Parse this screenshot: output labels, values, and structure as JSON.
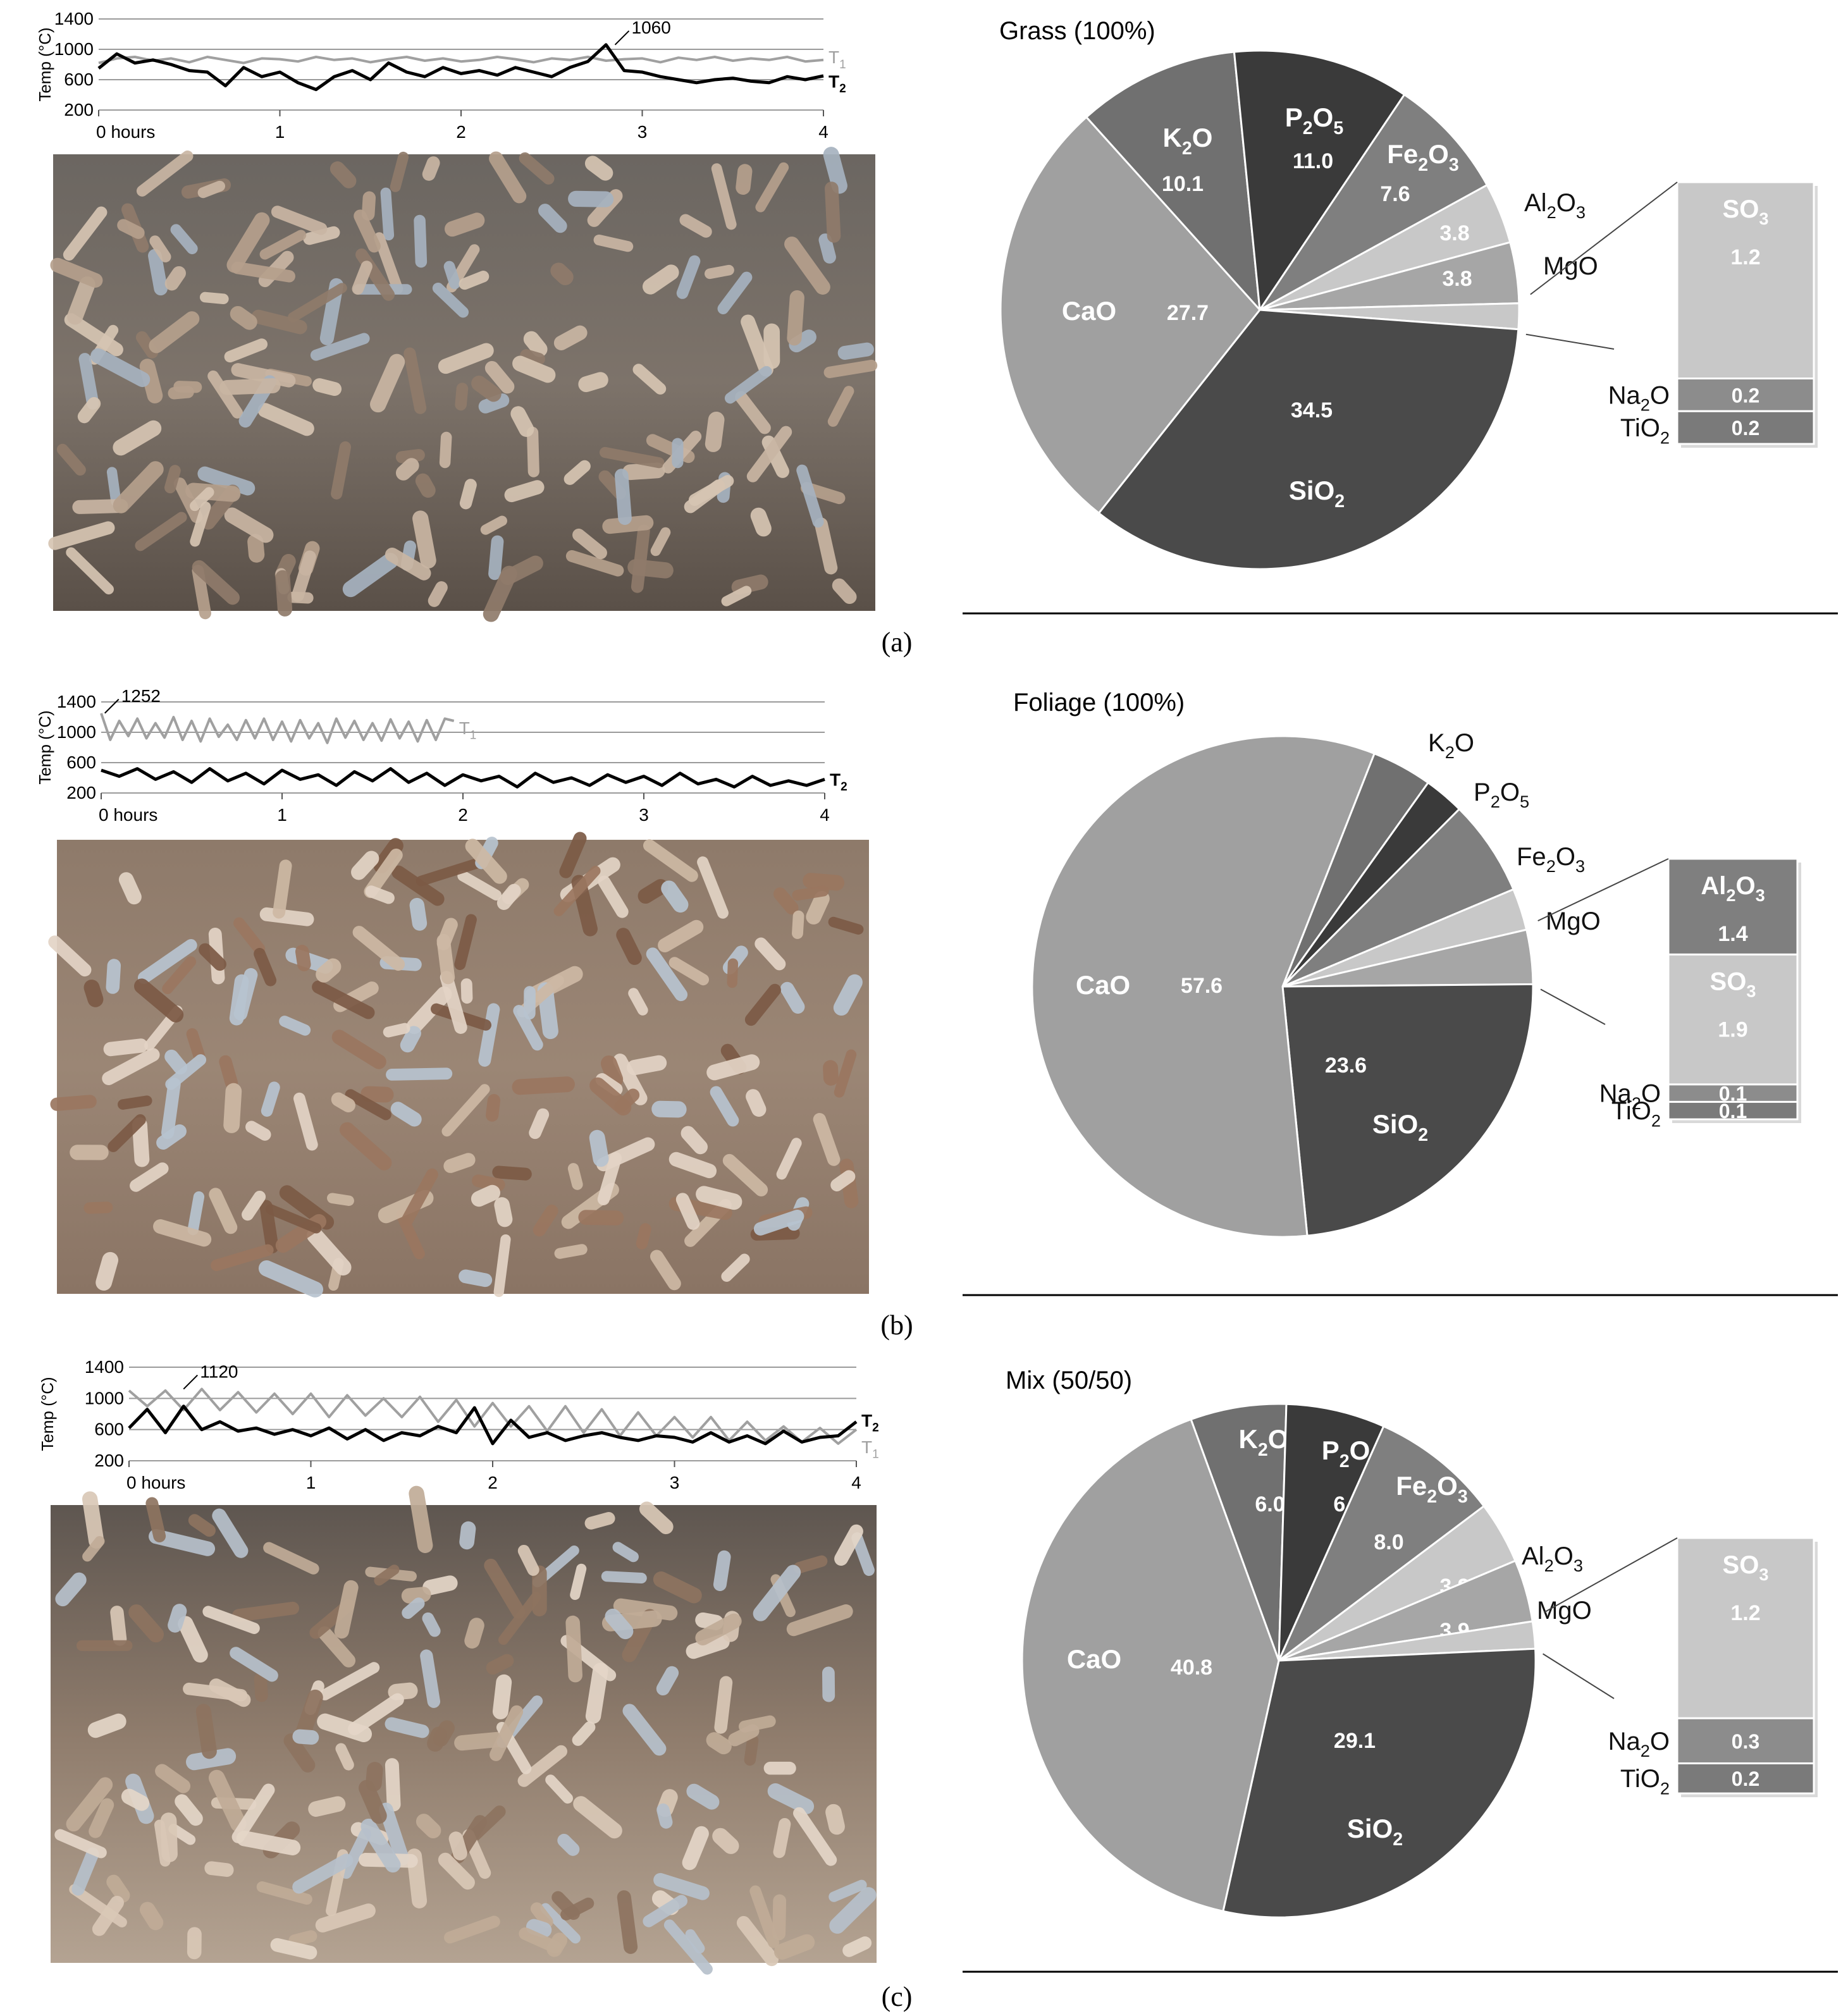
{
  "figure": {
    "panels": [
      {
        "label": "(a)",
        "letter": "a"
      },
      {
        "label": "(b)",
        "letter": "b"
      },
      {
        "label": "(c)",
        "letter": "c"
      }
    ]
  },
  "chart_data": [
    {
      "type": "line",
      "panel": "a",
      "ylabel": "Temp (°C)",
      "xlabel": "",
      "yticks": [
        "1400",
        "1000",
        "600",
        "200"
      ],
      "xticks": [
        "0 hours",
        "1",
        "2",
        "3",
        "4"
      ],
      "ylim": [
        200,
        1400
      ],
      "xlim": [
        0,
        4
      ],
      "grid": true,
      "annotation": {
        "text": "1060",
        "x": 2.85,
        "y": 1060
      },
      "series": [
        {
          "name": "T1",
          "label_main": "T",
          "label_sub": "1",
          "color": "#a0a0a0",
          "end_label_y": 900,
          "x": [
            0,
            0.1,
            0.2,
            0.3,
            0.4,
            0.5,
            0.6,
            0.7,
            0.8,
            0.9,
            1.0,
            1.1,
            1.2,
            1.3,
            1.4,
            1.5,
            1.6,
            1.7,
            1.8,
            1.9,
            2.0,
            2.1,
            2.2,
            2.3,
            2.4,
            2.5,
            2.6,
            2.7,
            2.8,
            2.9,
            3.0,
            3.1,
            3.2,
            3.3,
            3.4,
            3.5,
            3.6,
            3.7,
            3.8,
            3.9,
            4.0
          ],
          "y": [
            820,
            880,
            900,
            850,
            880,
            830,
            900,
            860,
            820,
            880,
            870,
            840,
            900,
            860,
            880,
            830,
            870,
            900,
            850,
            880,
            840,
            860,
            900,
            870,
            830,
            880,
            860,
            900,
            850,
            870,
            880,
            830,
            890,
            860,
            900,
            850,
            880,
            860,
            900,
            840,
            860
          ]
        },
        {
          "name": "T2",
          "label_main": "T",
          "label_sub": "2",
          "color": "#000000",
          "end_label_y": 580,
          "bold": true,
          "x": [
            0,
            0.1,
            0.2,
            0.3,
            0.4,
            0.5,
            0.6,
            0.7,
            0.8,
            0.9,
            1.0,
            1.1,
            1.2,
            1.3,
            1.4,
            1.5,
            1.6,
            1.7,
            1.8,
            1.9,
            2.0,
            2.1,
            2.2,
            2.3,
            2.4,
            2.5,
            2.6,
            2.7,
            2.8,
            2.9,
            3.0,
            3.1,
            3.2,
            3.3,
            3.4,
            3.5,
            3.6,
            3.7,
            3.8,
            3.9,
            4.0
          ],
          "y": [
            750,
            940,
            820,
            860,
            800,
            720,
            700,
            520,
            760,
            640,
            700,
            560,
            470,
            640,
            720,
            600,
            820,
            700,
            640,
            760,
            680,
            720,
            660,
            760,
            700,
            640,
            760,
            840,
            1060,
            720,
            700,
            640,
            600,
            560,
            600,
            620,
            580,
            560,
            640,
            600,
            650
          ]
        }
      ]
    },
    {
      "type": "pie",
      "panel": "a",
      "title": "Grass (100%)",
      "slices": [
        {
          "label": "K2O",
          "main": "K",
          "sub": "2",
          "tail": "O",
          "value": 10.1,
          "value_label": "10.1",
          "color": "#707070"
        },
        {
          "label": "P2O5",
          "main": "P",
          "sub": "2",
          "mid": "O",
          "sub2": "5",
          "value": 11.0,
          "value_label": "11.0",
          "color": "#3a3a3a"
        },
        {
          "label": "Fe2O3",
          "main": "Fe",
          "sub": "2",
          "mid": "O",
          "sub2": "3",
          "value": 7.6,
          "value_label": "7.6",
          "color": "#7f7f7f"
        },
        {
          "label": "Al2O3",
          "main": "Al",
          "sub": "2",
          "mid": "O",
          "sub2": "3",
          "value": 3.8,
          "value_label": "3.8",
          "color": "#c8c8c8"
        },
        {
          "label": "MgO",
          "main": "MgO",
          "value": 3.8,
          "value_label": "3.8",
          "color": "#a6a6a6"
        },
        {
          "label": "SO3 + Na2O + TiO2",
          "value": 1.6,
          "color": "#c8c8c8"
        },
        {
          "label": "SiO2",
          "main": "Si",
          "mid": "O",
          "sub2": "2",
          "value": 34.5,
          "value_label": "34.5",
          "color": "#4a4a4a"
        },
        {
          "label": "CaO",
          "main": "CaO",
          "value": 27.7,
          "value_label": "27.7",
          "color": "#a0a0a0"
        }
      ],
      "breakout": [
        {
          "label": "SO3",
          "main": "SO",
          "sub": "3",
          "value": 1.2,
          "value_label": "1.2",
          "color": "#c8c8c8"
        },
        {
          "label": "Na2O",
          "main": "Na",
          "sub": "2",
          "tail": "O",
          "value": 0.2,
          "value_label": "0.2",
          "color": "#8c8c8c"
        },
        {
          "label": "TiO2",
          "main": "TiO",
          "sub": "2",
          "value": 0.2,
          "value_label": "0.2",
          "color": "#7a7a7a"
        }
      ]
    },
    {
      "type": "line",
      "panel": "b",
      "ylabel": "Temp (°C)",
      "xlabel": "",
      "yticks": [
        "1400",
        "1000",
        "600",
        "200"
      ],
      "xticks": [
        "0 hours",
        "1",
        "2",
        "3",
        "4"
      ],
      "ylim": [
        200,
        1400
      ],
      "xlim": [
        0,
        4
      ],
      "grid": true,
      "annotation": {
        "text": "1252",
        "x": 0.02,
        "y": 1252
      },
      "series": [
        {
          "name": "T1",
          "label_main": "T",
          "label_sub": "1",
          "color": "#a0a0a0",
          "end_label_y": 1060,
          "x": [
            0,
            0.05,
            0.1,
            0.15,
            0.2,
            0.25,
            0.3,
            0.35,
            0.4,
            0.45,
            0.5,
            0.55,
            0.6,
            0.65,
            0.7,
            0.75,
            0.8,
            0.85,
            0.9,
            0.95,
            1.0,
            1.05,
            1.1,
            1.15,
            1.2,
            1.25,
            1.3,
            1.35,
            1.4,
            1.45,
            1.5,
            1.55,
            1.6,
            1.65,
            1.7,
            1.75,
            1.8,
            1.85,
            1.9,
            1.95
          ],
          "y": [
            1250,
            900,
            1150,
            950,
            1180,
            920,
            1120,
            930,
            1200,
            900,
            1150,
            880,
            1180,
            940,
            1100,
            900,
            1160,
            920,
            1180,
            900,
            1140,
            880,
            1160,
            920,
            1120,
            860,
            1180,
            930,
            1150,
            900,
            1120,
            890,
            1170,
            920,
            1140,
            880,
            1160,
            900,
            1180,
            1150
          ]
        },
        {
          "name": "T2",
          "label_main": "T",
          "label_sub": "2",
          "color": "#000000",
          "end_label_y": 380,
          "bold": true,
          "x": [
            0,
            0.1,
            0.2,
            0.3,
            0.4,
            0.5,
            0.6,
            0.7,
            0.8,
            0.9,
            1.0,
            1.1,
            1.2,
            1.3,
            1.4,
            1.5,
            1.6,
            1.7,
            1.8,
            1.9,
            2.0,
            2.1,
            2.2,
            2.3,
            2.4,
            2.5,
            2.6,
            2.7,
            2.8,
            2.9,
            3.0,
            3.1,
            3.2,
            3.3,
            3.4,
            3.5,
            3.6,
            3.7,
            3.8,
            3.9,
            4.0
          ],
          "y": [
            500,
            420,
            520,
            380,
            480,
            340,
            520,
            360,
            460,
            320,
            500,
            380,
            440,
            300,
            480,
            360,
            520,
            340,
            460,
            300,
            440,
            360,
            420,
            280,
            460,
            340,
            400,
            300,
            440,
            340,
            420,
            300,
            460,
            320,
            380,
            280,
            420,
            300,
            360,
            300,
            380
          ]
        }
      ]
    },
    {
      "type": "pie",
      "panel": "b",
      "title": "Foliage (100%)",
      "slices": [
        {
          "label": "K2O",
          "main": "K",
          "sub": "2",
          "tail": "O",
          "value": 3.9,
          "value_label": "3.9",
          "color": "#707070"
        },
        {
          "label": "P2O5",
          "main": "P",
          "sub": "2",
          "mid": "O",
          "sub2": "5",
          "value": 2.6,
          "value_label": "2.6",
          "color": "#3a3a3a"
        },
        {
          "label": "Fe2O3",
          "main": "Fe",
          "sub": "2",
          "mid": "O",
          "sub2": "3",
          "value": 6.2,
          "value_label": "6.2",
          "color": "#7f7f7f"
        },
        {
          "label": "MgO",
          "main": "MgO",
          "value": 2.7,
          "value_label": "2.7",
          "color": "#c8c8c8"
        },
        {
          "label": "Al2O3 + SO3 + Na2O + TiO2",
          "value": 3.5,
          "color": "#a6a6a6"
        },
        {
          "label": "SiO2",
          "main": "Si",
          "mid": "O",
          "sub2": "2",
          "value": 23.6,
          "value_label": "23.6",
          "color": "#4a4a4a"
        },
        {
          "label": "CaO",
          "main": "CaO",
          "value": 57.6,
          "value_label": "57.6",
          "color": "#a0a0a0"
        }
      ],
      "breakout": [
        {
          "label": "Al2O3",
          "main": "Al",
          "sub": "2",
          "mid": "O",
          "sub2": "3",
          "value": 1.4,
          "value_label": "1.4",
          "color": "#7f7f7f"
        },
        {
          "label": "SO3",
          "main": "SO",
          "sub": "3",
          "value": 1.9,
          "value_label": "1.9",
          "color": "#c8c8c8"
        },
        {
          "label": "Na2O",
          "main": "Na",
          "sub": "2",
          "tail": "O",
          "value": 0.1,
          "value_label": "0.1",
          "color": "#8c8c8c"
        },
        {
          "label": "TiO2",
          "main": "TiO",
          "sub": "2",
          "value": 0.1,
          "value_label": "0.1",
          "color": "#7a7a7a"
        }
      ]
    },
    {
      "type": "line",
      "panel": "c",
      "ylabel": "Temp (°C)",
      "xlabel": "",
      "yticks": [
        "1400",
        "1000",
        "600",
        "200"
      ],
      "xticks": [
        "0 hours",
        "1",
        "2",
        "3",
        "4"
      ],
      "ylim": [
        200,
        1400
      ],
      "xlim": [
        0,
        4
      ],
      "grid": true,
      "annotation": {
        "text": "1120",
        "x": 0.3,
        "y": 1120
      },
      "series": [
        {
          "name": "T1",
          "label_main": "T",
          "label_sub": "1",
          "color": "#a0a0a0",
          "end_label_y": 380,
          "x": [
            0,
            0.1,
            0.2,
            0.3,
            0.4,
            0.5,
            0.6,
            0.7,
            0.8,
            0.9,
            1.0,
            1.1,
            1.2,
            1.3,
            1.4,
            1.5,
            1.6,
            1.7,
            1.8,
            1.9,
            2.0,
            2.1,
            2.2,
            2.3,
            2.4,
            2.5,
            2.6,
            2.7,
            2.8,
            2.9,
            3.0,
            3.1,
            3.2,
            3.3,
            3.4,
            3.5,
            3.6,
            3.7,
            3.8,
            3.9,
            4.0
          ],
          "y": [
            1100,
            900,
            1100,
            850,
            1120,
            850,
            1080,
            820,
            1060,
            800,
            1060,
            760,
            1040,
            780,
            1000,
            760,
            1020,
            700,
            980,
            640,
            940,
            640,
            900,
            580,
            900,
            560,
            860,
            520,
            820,
            520,
            760,
            500,
            760,
            460,
            700,
            460,
            640,
            440,
            620,
            420,
            600
          ]
        },
        {
          "name": "T2",
          "label_main": "T",
          "label_sub": "2",
          "color": "#000000",
          "end_label_y": 720,
          "bold": true,
          "x": [
            0,
            0.1,
            0.2,
            0.3,
            0.4,
            0.5,
            0.6,
            0.7,
            0.8,
            0.9,
            1.0,
            1.1,
            1.2,
            1.3,
            1.4,
            1.5,
            1.6,
            1.7,
            1.8,
            1.9,
            2.0,
            2.1,
            2.2,
            2.3,
            2.4,
            2.5,
            2.6,
            2.7,
            2.8,
            2.9,
            3.0,
            3.1,
            3.2,
            3.3,
            3.4,
            3.5,
            3.6,
            3.7,
            3.8,
            3.9,
            4.0
          ],
          "y": [
            620,
            860,
            560,
            900,
            600,
            700,
            580,
            620,
            540,
            600,
            520,
            620,
            480,
            600,
            460,
            560,
            520,
            640,
            560,
            880,
            420,
            720,
            500,
            560,
            460,
            520,
            560,
            500,
            460,
            520,
            500,
            440,
            560,
            440,
            520,
            420,
            580,
            440,
            500,
            520,
            700
          ]
        }
      ]
    },
    {
      "type": "pie",
      "panel": "c",
      "title": "Mix (50/50)",
      "slices": [
        {
          "label": "K2O",
          "main": "K",
          "sub": "2",
          "tail": "O",
          "value": 6.0,
          "value_label": "6.0",
          "color": "#707070"
        },
        {
          "label": "P2O5",
          "main": "P",
          "sub": "2",
          "mid": "O",
          "sub2": "5",
          "value": 6.2,
          "value_label": "6.2",
          "color": "#3a3a3a"
        },
        {
          "label": "Fe2O3",
          "main": "Fe",
          "sub": "2",
          "mid": "O",
          "sub2": "3",
          "value": 8.0,
          "value_label": "8.0",
          "color": "#7f7f7f"
        },
        {
          "label": "Al2O3",
          "main": "Al",
          "sub": "2",
          "mid": "O",
          "sub2": "3",
          "value": 3.9,
          "value_label": "3.9",
          "color": "#c8c8c8"
        },
        {
          "label": "MgO",
          "main": "MgO",
          "value": 3.9,
          "value_label": "3.9",
          "color": "#a6a6a6"
        },
        {
          "label": "SO3 + Na2O + TiO2",
          "value": 1.7,
          "color": "#c8c8c8"
        },
        {
          "label": "SiO2",
          "main": "Si",
          "mid": "O",
          "sub2": "2",
          "value": 29.1,
          "value_label": "29.1",
          "color": "#4a4a4a"
        },
        {
          "label": "CaO",
          "main": "CaO",
          "value": 40.8,
          "value_label": "40.8",
          "color": "#a0a0a0"
        }
      ],
      "breakout": [
        {
          "label": "SO3",
          "main": "SO",
          "sub": "3",
          "value": 1.2,
          "value_label": "1.2",
          "color": "#c8c8c8"
        },
        {
          "label": "Na2O",
          "main": "Na",
          "sub": "2",
          "tail": "O",
          "value": 0.3,
          "value_label": "0.3",
          "color": "#8c8c8c"
        },
        {
          "label": "TiO2",
          "main": "TiO",
          "sub": "2",
          "value": 0.2,
          "value_label": "0.2",
          "color": "#7a7a7a"
        }
      ]
    }
  ]
}
